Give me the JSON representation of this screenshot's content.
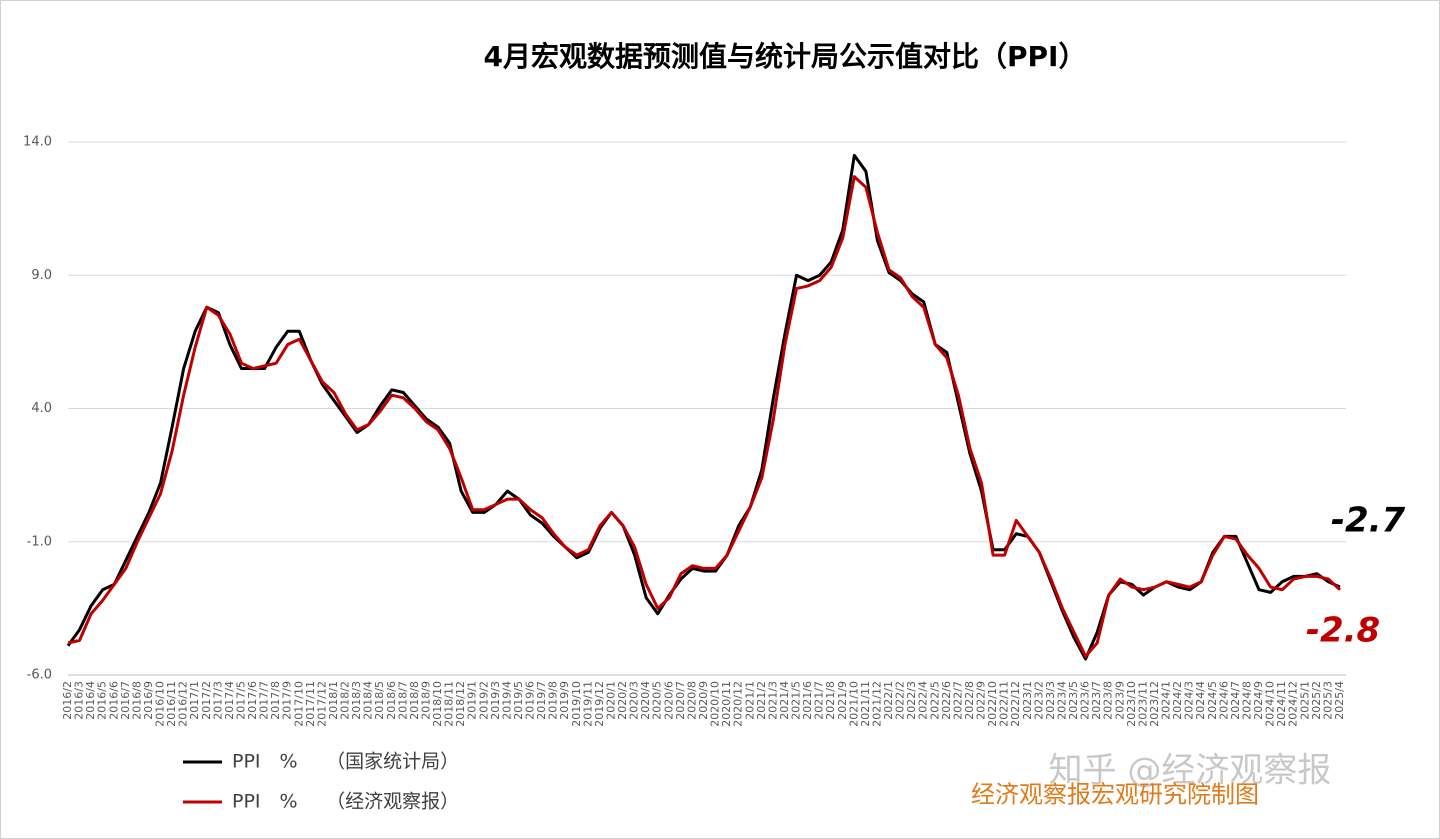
{
  "chart_data": {
    "type": "line",
    "title": "4月宏观数据预测值与统计局公示值对比（PPI）",
    "categories": [
      "2016/2",
      "2016/3",
      "2016/4",
      "2016/5",
      "2016/6",
      "2016/7",
      "2016/8",
      "2016/9",
      "2016/10",
      "2016/11",
      "2016/12",
      "2017/1",
      "2017/2",
      "2017/3",
      "2017/4",
      "2017/5",
      "2017/6",
      "2017/7",
      "2017/8",
      "2017/9",
      "2017/10",
      "2017/11",
      "2017/12",
      "2018/1",
      "2018/2",
      "2018/3",
      "2018/4",
      "2018/5",
      "2018/6",
      "2018/7",
      "2018/8",
      "2018/9",
      "2018/10",
      "2018/11",
      "2018/12",
      "2019/1",
      "2019/2",
      "2019/3",
      "2019/4",
      "2019/5",
      "2019/6",
      "2019/7",
      "2019/8",
      "2019/9",
      "2019/10",
      "2019/11",
      "2019/12",
      "2020/1",
      "2020/2",
      "2020/3",
      "2020/4",
      "2020/5",
      "2020/6",
      "2020/7",
      "2020/8",
      "2020/9",
      "2020/10",
      "2020/11",
      "2020/12",
      "2021/1",
      "2021/2",
      "2021/3",
      "2021/4",
      "2021/5",
      "2021/6",
      "2021/7",
      "2021/8",
      "2021/9",
      "2021/10",
      "2021/11",
      "2021/12",
      "2022/1",
      "2022/2",
      "2022/3",
      "2022/4",
      "2022/5",
      "2022/6",
      "2022/7",
      "2022/8",
      "2022/9",
      "2022/10",
      "2022/11",
      "2022/12",
      "2023/1",
      "2023/2",
      "2023/3",
      "2023/4",
      "2023/5",
      "2023/6",
      "2023/7",
      "2023/8",
      "2023/9",
      "2023/10",
      "2023/11",
      "2023/12",
      "2024/1",
      "2024/2",
      "2024/3",
      "2024/4",
      "2024/5",
      "2024/6",
      "2024/7",
      "2024/8",
      "2024/9",
      "2024/10",
      "2024/11",
      "2024/12",
      "2025/1",
      "2025/2",
      "2025/3",
      "2025/4"
    ],
    "series": [
      {
        "name": "PPI　%　　（国家统计局）",
        "color": "#000000",
        "values": [
          -4.9,
          -4.3,
          -3.4,
          -2.8,
          -2.6,
          -1.7,
          -0.8,
          0.1,
          1.2,
          3.3,
          5.5,
          6.9,
          7.8,
          7.6,
          6.4,
          5.5,
          5.5,
          5.5,
          6.3,
          6.9,
          6.9,
          5.8,
          4.9,
          4.3,
          3.7,
          3.1,
          3.4,
          4.1,
          4.7,
          4.6,
          4.1,
          3.6,
          3.3,
          2.7,
          0.9,
          0.1,
          0.1,
          0.4,
          0.9,
          0.6,
          0.0,
          -0.3,
          -0.8,
          -1.2,
          -1.6,
          -1.4,
          -0.5,
          0.1,
          -0.4,
          -1.5,
          -3.1,
          -3.7,
          -3.0,
          -2.4,
          -2.0,
          -2.1,
          -2.1,
          -1.5,
          -0.4,
          0.3,
          1.7,
          4.4,
          6.8,
          9.0,
          8.8,
          9.0,
          9.5,
          10.7,
          13.5,
          12.9,
          10.3,
          9.1,
          8.8,
          8.3,
          8.0,
          6.4,
          6.1,
          4.2,
          2.3,
          0.9,
          -1.3,
          -1.3,
          -0.7,
          -0.8,
          -1.4,
          -2.5,
          -3.6,
          -4.6,
          -5.4,
          -4.4,
          -3.0,
          -2.5,
          -2.6,
          -3.0,
          -2.7,
          -2.5,
          -2.7,
          -2.8,
          -2.5,
          -1.4,
          -0.8,
          -0.8,
          -1.8,
          -2.8,
          -2.9,
          -2.5,
          -2.3,
          -2.3,
          -2.2,
          -2.5,
          -2.7
        ]
      },
      {
        "name": "PPI　%　　（经济观察报）",
        "color": "#c00000",
        "values": [
          -4.8,
          -4.7,
          -3.7,
          -3.2,
          -2.6,
          -2.0,
          -1.0,
          -0.1,
          0.8,
          2.4,
          4.5,
          6.3,
          7.8,
          7.5,
          6.8,
          5.7,
          5.5,
          5.6,
          5.7,
          6.4,
          6.6,
          5.8,
          5.0,
          4.6,
          3.8,
          3.2,
          3.4,
          3.9,
          4.5,
          4.4,
          4.0,
          3.5,
          3.2,
          2.5,
          1.4,
          0.2,
          0.2,
          0.4,
          0.6,
          0.6,
          0.2,
          -0.1,
          -0.7,
          -1.2,
          -1.5,
          -1.3,
          -0.4,
          0.1,
          -0.4,
          -1.2,
          -2.6,
          -3.5,
          -3.1,
          -2.2,
          -1.9,
          -2.0,
          -2.0,
          -1.5,
          -0.6,
          0.3,
          1.4,
          3.6,
          6.4,
          8.5,
          8.6,
          8.8,
          9.3,
          10.4,
          12.7,
          12.3,
          10.6,
          9.2,
          8.9,
          8.2,
          7.8,
          6.4,
          5.9,
          4.5,
          2.5,
          1.2,
          -1.5,
          -1.5,
          -0.2,
          -0.8,
          -1.4,
          -2.4,
          -3.5,
          -4.4,
          -5.3,
          -4.8,
          -3.0,
          -2.4,
          -2.7,
          -2.8,
          -2.7,
          -2.5,
          -2.6,
          -2.7,
          -2.5,
          -1.5,
          -0.8,
          -0.9,
          -1.5,
          -2.0,
          -2.7,
          -2.8,
          -2.4,
          -2.3,
          -2.3,
          -2.4,
          -2.8
        ]
      }
    ],
    "ylim": [
      -6,
      14
    ],
    "yticks": [
      {
        "value": -6,
        "label": "-6.0"
      },
      {
        "value": -1,
        "label": "-1.0"
      },
      {
        "value": 4,
        "label": "4.0"
      },
      {
        "value": 9,
        "label": "9.0"
      },
      {
        "value": 14,
        "label": "14.0"
      }
    ],
    "grid": true,
    "annotations": [
      "-2.7",
      "-2.8"
    ],
    "credit": "经济观察报宏观研究院制图",
    "watermark": "知乎 @经济观察报"
  }
}
